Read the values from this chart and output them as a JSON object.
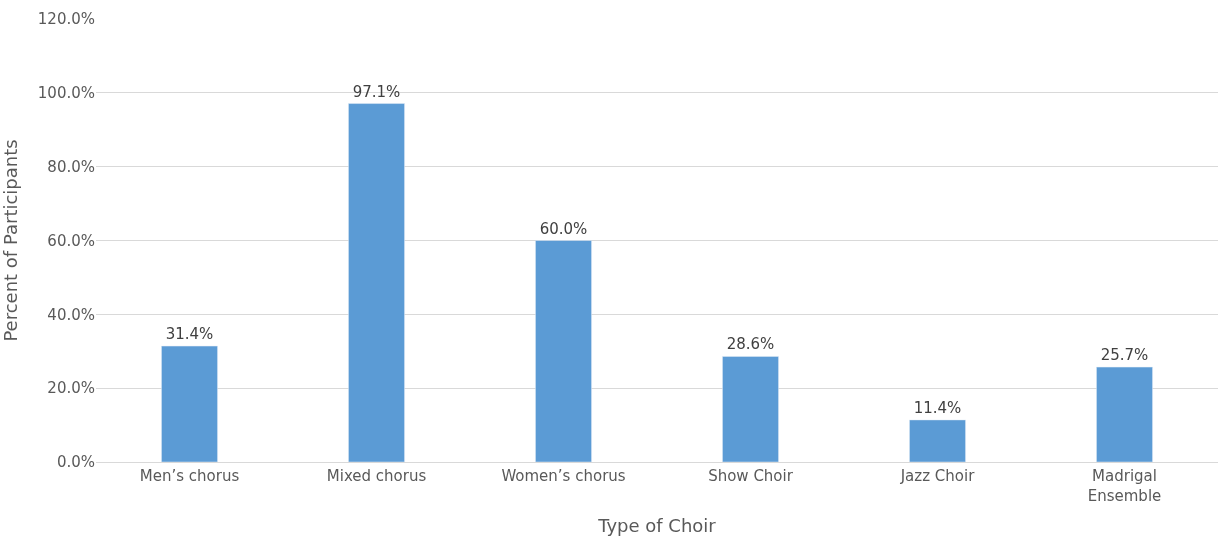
{
  "chart_data": {
    "type": "bar",
    "xlabel": "Type of Choir",
    "ylabel": "Percent of Participants",
    "categories": [
      "Men’s chorus",
      "Mixed chorus",
      "Women’s chorus",
      "Show Choir",
      "Jazz Choir",
      "Madrigal Ensemble"
    ],
    "values": [
      31.4,
      97.1,
      60.0,
      28.6,
      11.4,
      25.7
    ],
    "value_labels": [
      "31.4%",
      "97.1%",
      "60.0%",
      "28.6%",
      "11.4%",
      "25.7%"
    ],
    "color": "#5b9bd5",
    "ylim": [
      0,
      120
    ],
    "yticks": [
      {
        "value": 0,
        "label": "0.0%"
      },
      {
        "value": 20,
        "label": "20.0%"
      },
      {
        "value": 40,
        "label": "40.0%"
      },
      {
        "value": 60,
        "label": "60.0%"
      },
      {
        "value": 80,
        "label": "80.0%"
      },
      {
        "value": 100,
        "label": "100.0%"
      },
      {
        "value": 120,
        "label": "120.0%"
      }
    ],
    "grid": "y",
    "legend": false
  }
}
